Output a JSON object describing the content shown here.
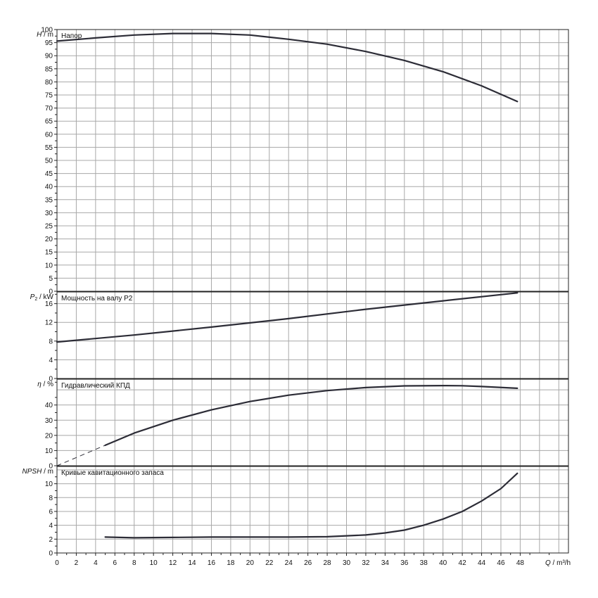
{
  "chart_data": [
    {
      "type": "line",
      "title": "Напор",
      "ylabel_sym": "H",
      "ylabel_unit": " / m",
      "ylim": [
        0,
        100
      ],
      "yticks": [
        0,
        5,
        10,
        15,
        20,
        25,
        30,
        35,
        40,
        45,
        50,
        55,
        60,
        65,
        70,
        75,
        80,
        85,
        90,
        95,
        100
      ],
      "grid": true,
      "series": [
        {
          "points": [
            [
              0,
              95.6
            ],
            [
              4,
              96.8
            ],
            [
              8,
              97.9
            ],
            [
              12,
              98.5
            ],
            [
              16,
              98.5
            ],
            [
              20,
              97.9
            ],
            [
              24,
              96.3
            ],
            [
              28,
              94.4
            ],
            [
              32,
              91.6
            ],
            [
              36,
              88.2
            ],
            [
              40,
              83.9
            ],
            [
              44,
              78.5
            ],
            [
              47.7,
              72.5
            ]
          ]
        }
      ]
    },
    {
      "type": "line",
      "title": "Мощность на валу P2",
      "ylabel_sym": "P",
      "ylabel_sub": "2",
      "ylabel_unit": " / kW",
      "ylim": [
        0,
        18.5
      ],
      "yticks": [
        0,
        4,
        8,
        12,
        16
      ],
      "grid": true,
      "series": [
        {
          "points": [
            [
              0,
              7.8
            ],
            [
              8,
              9.3
            ],
            [
              16,
              11.0
            ],
            [
              24,
              12.8
            ],
            [
              32,
              14.8
            ],
            [
              40,
              16.6
            ],
            [
              47.7,
              18.3
            ]
          ]
        }
      ]
    },
    {
      "type": "line",
      "title": "Гидравлический КПД",
      "ylabel_sym": "η",
      "ylabel_unit": " / %",
      "ylim": [
        0,
        57
      ],
      "yticks": [
        0,
        10,
        20,
        30,
        40
      ],
      "grid": true,
      "series": [
        {
          "style": "dashed",
          "points": [
            [
              0,
              0
            ],
            [
              5,
              13.5
            ]
          ]
        },
        {
          "points": [
            [
              5,
              13.5
            ],
            [
              8,
              21.5
            ],
            [
              12,
              30
            ],
            [
              16,
              36.8
            ],
            [
              20,
              42.3
            ],
            [
              24,
              46.5
            ],
            [
              28,
              49.5
            ],
            [
              32,
              51.5
            ],
            [
              36,
              52.6
            ],
            [
              40,
              52.8
            ],
            [
              42,
              52.7
            ],
            [
              44,
              52.2
            ],
            [
              47.7,
              51.0
            ]
          ]
        }
      ]
    },
    {
      "type": "line",
      "title": "Кривые кавитационного запаса",
      "ylabel_sym": "NPSH",
      "ylabel_unit": " / m",
      "ylim": [
        0,
        12.5
      ],
      "yticks": [
        0,
        2,
        4,
        6,
        8,
        10
      ],
      "grid": true,
      "series": [
        {
          "points": [
            [
              5,
              2.3
            ],
            [
              8,
              2.2
            ],
            [
              12,
              2.25
            ],
            [
              16,
              2.3
            ],
            [
              20,
              2.3
            ],
            [
              24,
              2.3
            ],
            [
              28,
              2.35
            ],
            [
              32,
              2.6
            ],
            [
              34,
              2.9
            ],
            [
              36,
              3.3
            ],
            [
              38,
              4.0
            ],
            [
              40,
              4.9
            ],
            [
              42,
              6.0
            ],
            [
              44,
              7.5
            ],
            [
              46,
              9.3
            ],
            [
              47.7,
              11.5
            ]
          ]
        }
      ]
    }
  ],
  "xaxis": {
    "label_sym": "Q",
    "label_unit": " / m³/h",
    "xlim": [
      0,
      53
    ],
    "xticks": [
      0,
      2,
      4,
      6,
      8,
      10,
      12,
      14,
      16,
      18,
      20,
      22,
      24,
      26,
      28,
      30,
      32,
      34,
      36,
      38,
      40,
      42,
      44,
      46,
      48
    ]
  },
  "colors": {
    "grid": "#a8a8a8",
    "frame": "#222222",
    "curve": "#2c2c36"
  }
}
